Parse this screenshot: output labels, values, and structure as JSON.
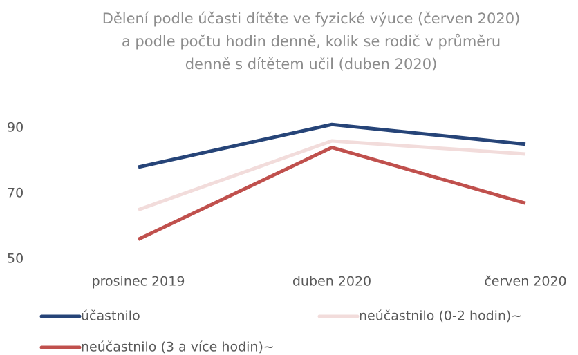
{
  "chart_data": {
    "type": "line",
    "title": [
      "Dělení podle účasti dítěte ve fyzické výuce (červen 2020)",
      "a podle počtu hodin denně, kolik se rodič v průměru",
      "denně s dítětem učil (duben 2020)"
    ],
    "categories": [
      "prosinec 2019",
      "duben 2020",
      "červen 2020"
    ],
    "series": [
      {
        "name": "účastnilo",
        "color": "#264478",
        "values": [
          78,
          91,
          85
        ]
      },
      {
        "name": "neúčastnilo (0-2 hodin)~",
        "color": "#f2dcdb",
        "values": [
          65,
          86,
          82
        ]
      },
      {
        "name": "neúčastnilo (3 a více hodin)~",
        "color": "#c0504d",
        "values": [
          56,
          84,
          67
        ]
      }
    ],
    "ylim": [
      50,
      100
    ],
    "yticks": [
      50,
      70,
      90
    ],
    "grid": false
  }
}
